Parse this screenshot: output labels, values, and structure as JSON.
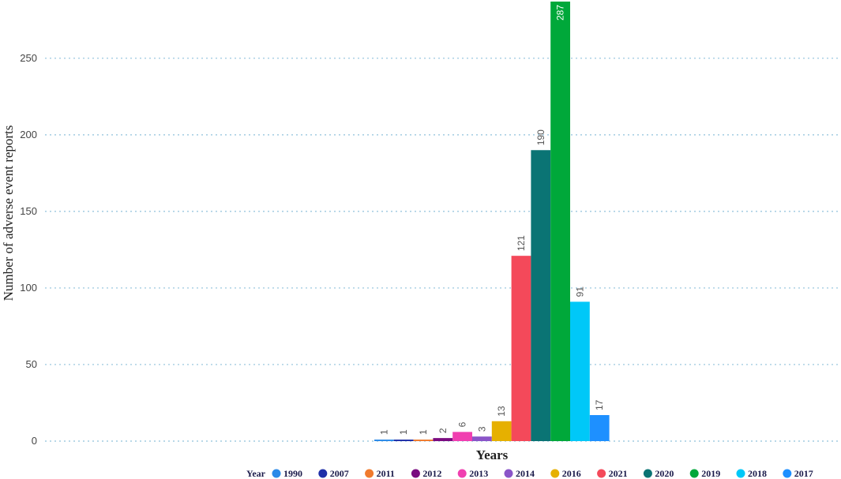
{
  "chart_data": {
    "type": "bar",
    "title": "",
    "xlabel": "Years",
    "ylabel": "Number of adverse event reports",
    "ylim": [
      0,
      287
    ],
    "yticks": [
      0,
      50,
      100,
      150,
      200,
      250
    ],
    "grid": true,
    "legend_position": "bottom",
    "legend_title": "Year",
    "series": [
      {
        "name": "1990",
        "value": 1,
        "label": "1",
        "color": "#2b8ae8"
      },
      {
        "name": "2007",
        "value": 1,
        "label": "1",
        "color": "#1f2fa8"
      },
      {
        "name": "2011",
        "value": 1,
        "label": "1",
        "color": "#f07a2d"
      },
      {
        "name": "2012",
        "value": 2,
        "label": "2",
        "color": "#7a0b80"
      },
      {
        "name": "2013",
        "value": 6,
        "label": "6",
        "color": "#f03fb0"
      },
      {
        "name": "2014",
        "value": 3,
        "label": "3",
        "color": "#8a55c8"
      },
      {
        "name": "2016",
        "value": 13,
        "label": "13",
        "color": "#e6b000"
      },
      {
        "name": "2021",
        "value": 121,
        "label": "121",
        "color": "#f4495a"
      },
      {
        "name": "2020",
        "value": 190,
        "label": "190",
        "color": "#0a7474"
      },
      {
        "name": "2019",
        "value": 287,
        "label": "287",
        "color": "#00a83a"
      },
      {
        "name": "2018",
        "value": 91,
        "label": "91",
        "color": "#00c8f8"
      },
      {
        "name": "2017",
        "value": 17,
        "label": "17",
        "color": "#1e90ff"
      }
    ]
  }
}
